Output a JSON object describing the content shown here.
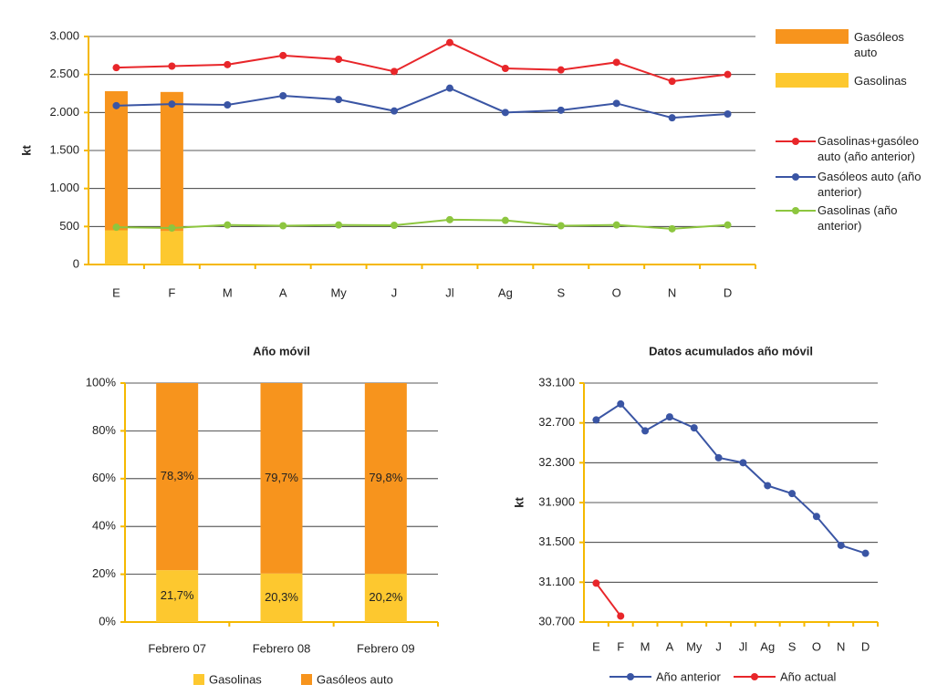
{
  "chart_data": [
    {
      "type": "combo",
      "y_label": "kt",
      "categories": [
        "E",
        "F",
        "M",
        "A",
        "My",
        "J",
        "Jl",
        "Ag",
        "S",
        "O",
        "N",
        "D"
      ],
      "ylim": [
        0,
        3000
      ],
      "yticks": [
        0,
        500,
        {
          "value": 1000,
          "label": "1.000"
        },
        {
          "value": 1500,
          "label": "1.500"
        },
        {
          "value": 2000,
          "label": "2.000"
        },
        {
          "value": 2500,
          "label": "2.500"
        },
        {
          "value": 3000,
          "label": "3.000"
        }
      ],
      "grid": true,
      "series": [
        {
          "name": "Gasolinas",
          "type": "bar",
          "color": "#fdc82f",
          "values": [
            450,
            440,
            null,
            null,
            null,
            null,
            null,
            null,
            null,
            null,
            null,
            null
          ]
        },
        {
          "name": "Gasóleos auto",
          "type": "bar",
          "color": "#f7941d",
          "values": [
            1830,
            1830,
            null,
            null,
            null,
            null,
            null,
            null,
            null,
            null,
            null,
            null
          ]
        },
        {
          "name": "Gasolinas+gasóleo auto (año anterior)",
          "type": "line",
          "color": "#e8262a",
          "values": [
            2590,
            2610,
            2630,
            2750,
            2700,
            2540,
            2920,
            2580,
            2560,
            2660,
            2410,
            2500
          ]
        },
        {
          "name": "Gasóleos auto (año anterior)",
          "type": "line",
          "color": "#3a55a4",
          "values": [
            2090,
            2110,
            2100,
            2220,
            2170,
            2020,
            2320,
            2000,
            2030,
            2120,
            1930,
            1980
          ]
        },
        {
          "name": "Gasolinas (año anterior)",
          "type": "line",
          "color": "#8dc63f",
          "values": [
            490,
            480,
            520,
            510,
            520,
            516,
            590,
            580,
            510,
            520,
            470,
            520
          ]
        }
      ]
    },
    {
      "type": "bar100",
      "title": "Año móvil",
      "categories": [
        "Febrero 07",
        "Febrero 08",
        "Febrero 09"
      ],
      "ylim": [
        0,
        100
      ],
      "yticks": [
        {
          "value": 0,
          "label": "0%"
        },
        {
          "value": 20,
          "label": "20%"
        },
        {
          "value": 40,
          "label": "40%"
        },
        {
          "value": 60,
          "label": "60%"
        },
        {
          "value": 80,
          "label": "80%"
        },
        {
          "value": 100,
          "label": "100%"
        }
      ],
      "grid": true,
      "series": [
        {
          "name": "Gasolinas",
          "color": "#fdc82f",
          "values": [
            21.7,
            20.3,
            20.2
          ],
          "value_labels": [
            "21,7%",
            "20,3%",
            "20,2%"
          ]
        },
        {
          "name": "Gasóleos auto",
          "color": "#f7941d",
          "values": [
            78.3,
            79.7,
            79.8
          ],
          "value_labels": [
            "78,3%",
            "79,7%",
            "79,8%"
          ]
        }
      ]
    },
    {
      "type": "line",
      "title": "Datos acumulados año móvil",
      "y_label": "kt",
      "categories": [
        "E",
        "F",
        "M",
        "A",
        "My",
        "J",
        "Jl",
        "Ag",
        "S",
        "O",
        "N",
        "D"
      ],
      "ylim": [
        30700,
        33100
      ],
      "yticks": [
        {
          "value": 30700,
          "label": "30.700"
        },
        {
          "value": 31100,
          "label": "31.100"
        },
        {
          "value": 31500,
          "label": "31.500"
        },
        {
          "value": 31900,
          "label": "31.900"
        },
        {
          "value": 32300,
          "label": "32.300"
        },
        {
          "value": 32700,
          "label": "32.700"
        },
        {
          "value": 33100,
          "label": "33.100"
        }
      ],
      "grid": true,
      "series": [
        {
          "name": "Año anterior",
          "color": "#3a55a4",
          "values": [
            32730,
            32890,
            32620,
            32760,
            32650,
            32350,
            32300,
            32070,
            31990,
            31760,
            31470,
            31390
          ]
        },
        {
          "name": "Año actual",
          "color": "#e8262a",
          "values": [
            31090,
            30760,
            null,
            null,
            null,
            null,
            null,
            null,
            null,
            null,
            null,
            null
          ]
        }
      ]
    }
  ]
}
